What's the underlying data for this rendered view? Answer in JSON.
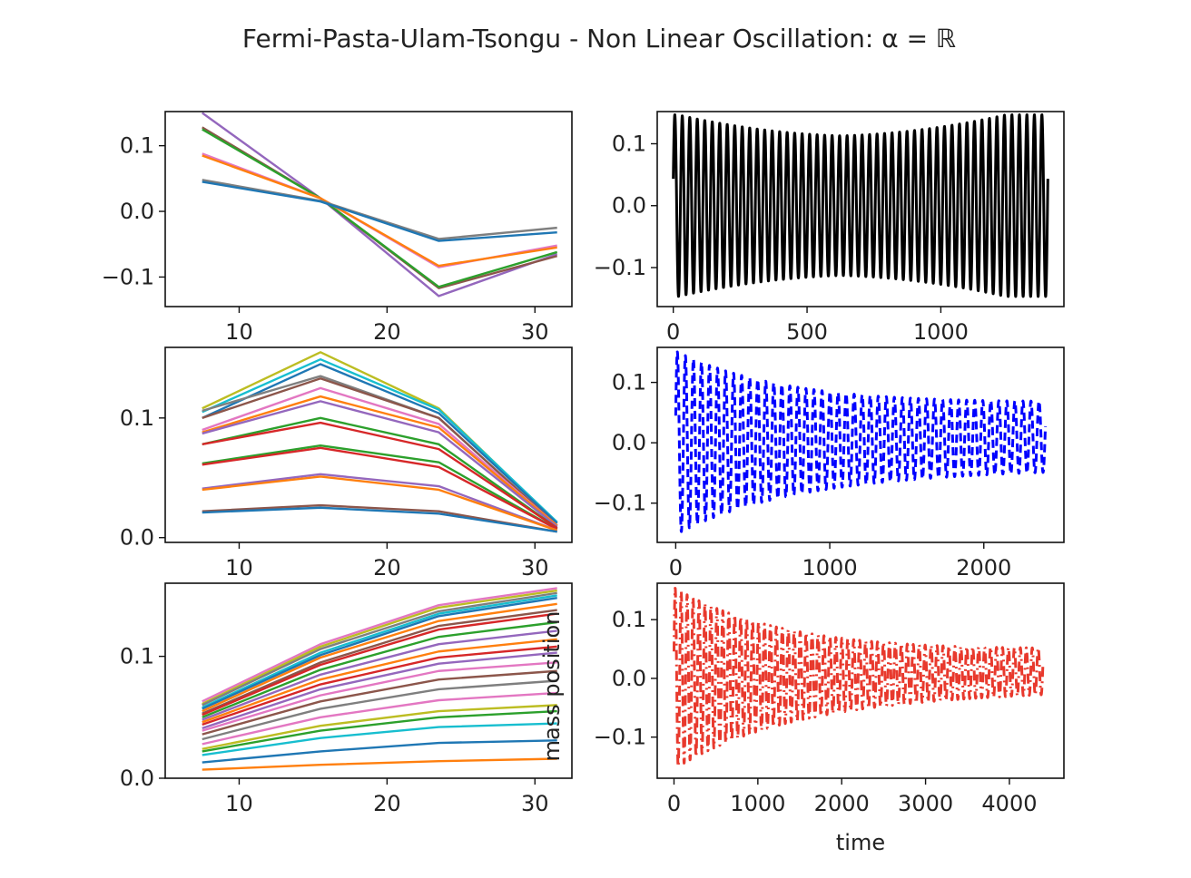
{
  "figure": {
    "title": "Fermi-Pasta-Ulam-Tsongu - Non Linear Oscillation: α = ℝ"
  },
  "chart_data": [
    {
      "type": "line",
      "panel": "row1-left",
      "x": [
        7.5,
        15.5,
        23.5,
        31.5
      ],
      "xlim": [
        5,
        32.5
      ],
      "ylim": [
        -0.145,
        0.152
      ],
      "xticks": [
        10,
        20,
        30
      ],
      "xtick_labels": [
        "10",
        "20",
        "30"
      ],
      "yticks": [
        -0.1,
        0.0,
        0.1
      ],
      "ytick_labels": [
        "−0.1",
        "0.0",
        "0.1"
      ],
      "series": [
        {
          "color": "#9467bd",
          "values": [
            0.15,
            0.02,
            -0.129,
            -0.065
          ]
        },
        {
          "color": "#8c564b",
          "values": [
            0.128,
            0.02,
            -0.117,
            -0.068
          ]
        },
        {
          "color": "#2ca02c",
          "values": [
            0.125,
            0.02,
            -0.115,
            -0.062
          ]
        },
        {
          "color": "#e377c2",
          "values": [
            0.088,
            0.02,
            -0.085,
            -0.052
          ]
        },
        {
          "color": "#ff7f0e",
          "values": [
            0.085,
            0.02,
            -0.083,
            -0.055
          ]
        },
        {
          "color": "#7f7f7f",
          "values": [
            0.048,
            0.016,
            -0.042,
            -0.025
          ]
        },
        {
          "color": "#1f77b4",
          "values": [
            0.045,
            0.015,
            -0.045,
            -0.032
          ]
        }
      ]
    },
    {
      "type": "line",
      "panel": "row1-right",
      "xlim": [
        -60,
        1460
      ],
      "ylim": [
        -0.163,
        0.152
      ],
      "xticks": [
        0,
        500,
        1000
      ],
      "xtick_labels": [
        "0",
        "500",
        "1000"
      ],
      "yticks": [
        -0.1,
        0.0,
        0.1
      ],
      "ytick_labels": [
        "−0.1",
        "0.0",
        "0.1"
      ],
      "series": [
        {
          "color": "#000000",
          "style": "solid",
          "t_end": 1400,
          "cycles": 50,
          "amplitude": 0.147,
          "amplitude_min": 0.113,
          "min_at": 0.45
        }
      ]
    },
    {
      "type": "line",
      "panel": "row2-left",
      "x": [
        7.5,
        15.5,
        23.5,
        31.5
      ],
      "xlim": [
        5,
        32.5
      ],
      "ylim": [
        -0.004,
        0.159
      ],
      "xticks": [
        10,
        20,
        30
      ],
      "xtick_labels": [
        "10",
        "20",
        "30"
      ],
      "yticks": [
        0.0,
        0.1
      ],
      "ytick_labels": [
        "0.0",
        "0.1"
      ],
      "series": [
        {
          "color": "#bcbd22",
          "values": [
            0.108,
            0.155,
            0.108,
            0.012
          ]
        },
        {
          "color": "#17becf",
          "values": [
            0.105,
            0.149,
            0.107,
            0.013
          ]
        },
        {
          "color": "#1f77b4",
          "values": [
            0.1,
            0.145,
            0.104,
            0.012
          ]
        },
        {
          "color": "#7f7f7f",
          "values": [
            0.106,
            0.135,
            0.1,
            0.01
          ]
        },
        {
          "color": "#8c564b",
          "values": [
            0.1,
            0.133,
            0.1,
            0.01
          ]
        },
        {
          "color": "#e377c2",
          "values": [
            0.09,
            0.125,
            0.095,
            0.01
          ]
        },
        {
          "color": "#ff7f0e",
          "values": [
            0.088,
            0.118,
            0.092,
            0.01
          ]
        },
        {
          "color": "#9467bd",
          "values": [
            0.087,
            0.114,
            0.088,
            0.009
          ]
        },
        {
          "color": "#2ca02c",
          "values": [
            0.078,
            0.1,
            0.078,
            0.008
          ]
        },
        {
          "color": "#d62728",
          "values": [
            0.078,
            0.096,
            0.074,
            0.008
          ]
        },
        {
          "color": "#2ca02c",
          "values": [
            0.062,
            0.077,
            0.063,
            0.007
          ]
        },
        {
          "color": "#d62728",
          "values": [
            0.061,
            0.075,
            0.059,
            0.007
          ]
        },
        {
          "color": "#9467bd",
          "values": [
            0.041,
            0.053,
            0.043,
            0.006
          ]
        },
        {
          "color": "#ff7f0e",
          "values": [
            0.04,
            0.051,
            0.04,
            0.006
          ]
        },
        {
          "color": "#8c564b",
          "values": [
            0.022,
            0.027,
            0.022,
            0.005
          ]
        },
        {
          "color": "#1f77b4",
          "values": [
            0.021,
            0.025,
            0.02,
            0.005
          ]
        }
      ]
    },
    {
      "type": "line",
      "panel": "row2-right",
      "xlim": [
        -120,
        2520
      ],
      "ylim": [
        -0.165,
        0.158
      ],
      "xticks": [
        0,
        1000,
        2000
      ],
      "xtick_labels": [
        "0",
        "1000",
        "2000"
      ],
      "yticks": [
        -0.1,
        0.0,
        0.1
      ],
      "ytick_labels": [
        "−0.1",
        "0.0",
        "0.1"
      ],
      "series": [
        {
          "color": "#0000ff",
          "style": "dashed",
          "t_end": 2400,
          "cycles": 46,
          "amplitude": 0.152,
          "amplitude_min": 0.055,
          "offset_end": 0.01
        }
      ]
    },
    {
      "type": "line",
      "panel": "row3-left",
      "x": [
        7.5,
        15.5,
        23.5,
        31.5
      ],
      "xlim": [
        5,
        32.5
      ],
      "ylim": [
        0.0,
        0.16
      ],
      "xticks": [
        10,
        20,
        30
      ],
      "xtick_labels": [
        "10",
        "20",
        "30"
      ],
      "yticks": [
        0.0,
        0.1
      ],
      "ytick_labels": [
        "0.0",
        "0.1"
      ],
      "series": [
        {
          "color": "#e377c2",
          "values": [
            0.063,
            0.11,
            0.142,
            0.156
          ]
        },
        {
          "color": "#bcbd22",
          "values": [
            0.061,
            0.108,
            0.14,
            0.154
          ]
        },
        {
          "color": "#7f7f7f",
          "values": [
            0.06,
            0.106,
            0.137,
            0.152
          ]
        },
        {
          "color": "#17becf",
          "values": [
            0.058,
            0.103,
            0.135,
            0.15
          ]
        },
        {
          "color": "#1f77b4",
          "values": [
            0.057,
            0.101,
            0.133,
            0.148
          ]
        },
        {
          "color": "#ff7f0e",
          "values": [
            0.055,
            0.099,
            0.129,
            0.143
          ]
        },
        {
          "color": "#8c564b",
          "values": [
            0.053,
            0.095,
            0.125,
            0.138
          ]
        },
        {
          "color": "#d62728",
          "values": [
            0.052,
            0.093,
            0.122,
            0.135
          ]
        },
        {
          "color": "#2ca02c",
          "values": [
            0.05,
            0.089,
            0.116,
            0.128
          ]
        },
        {
          "color": "#9467bd",
          "values": [
            0.048,
            0.085,
            0.11,
            0.121
          ]
        },
        {
          "color": "#ff7f0e",
          "values": [
            0.046,
            0.081,
            0.104,
            0.114
          ]
        },
        {
          "color": "#d62728",
          "values": [
            0.044,
            0.077,
            0.099,
            0.108
          ]
        },
        {
          "color": "#9467bd",
          "values": [
            0.041,
            0.073,
            0.094,
            0.103
          ]
        },
        {
          "color": "#e377c2",
          "values": [
            0.039,
            0.068,
            0.088,
            0.095
          ]
        },
        {
          "color": "#8c564b",
          "values": [
            0.036,
            0.063,
            0.081,
            0.088
          ]
        },
        {
          "color": "#7f7f7f",
          "values": [
            0.032,
            0.057,
            0.073,
            0.08
          ]
        },
        {
          "color": "#e377c2",
          "values": [
            0.028,
            0.05,
            0.064,
            0.07
          ]
        },
        {
          "color": "#bcbd22",
          "values": [
            0.024,
            0.043,
            0.055,
            0.06
          ]
        },
        {
          "color": "#2ca02c",
          "values": [
            0.022,
            0.039,
            0.05,
            0.055
          ]
        },
        {
          "color": "#17becf",
          "values": [
            0.019,
            0.033,
            0.042,
            0.045
          ]
        },
        {
          "color": "#1f77b4",
          "values": [
            0.013,
            0.022,
            0.029,
            0.031
          ]
        },
        {
          "color": "#ff7f0e",
          "values": [
            0.007,
            0.011,
            0.014,
            0.016
          ]
        }
      ]
    },
    {
      "type": "line",
      "panel": "row3-right",
      "xlim": [
        -200,
        4650
      ],
      "ylim": [
        -0.17,
        0.162
      ],
      "xticks": [
        0,
        1000,
        2000,
        3000,
        4000
      ],
      "xtick_labels": [
        "0",
        "1000",
        "2000",
        "3000",
        "4000"
      ],
      "yticks": [
        -0.1,
        0.0,
        0.1
      ],
      "ytick_labels": [
        "−0.1",
        "0.0",
        "0.1"
      ],
      "xlabel": "time",
      "ylabel": "mass position",
      "series": [
        {
          "color": "#e8392d",
          "style": "dashdot",
          "t_end": 4400,
          "cycles": 62,
          "amplitude": 0.155,
          "amplitude_min": 0.035,
          "offset_end": 0.012
        }
      ]
    }
  ]
}
